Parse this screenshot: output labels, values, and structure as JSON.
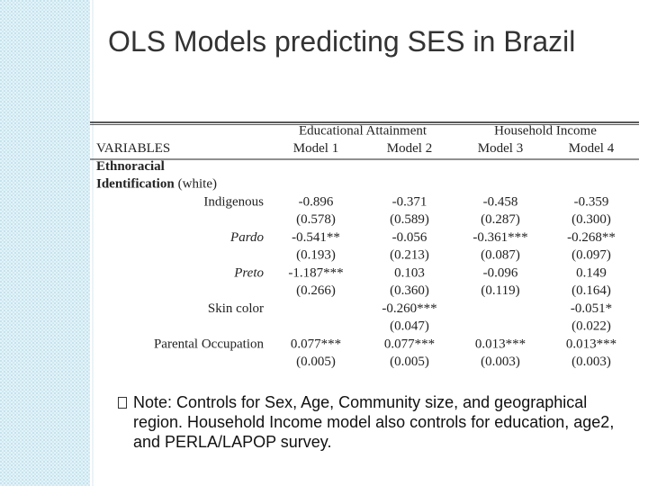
{
  "title": "OLS Models predicting SES in Brazil",
  "table": {
    "group_headers": [
      "Educational Attainment",
      "Household Income"
    ],
    "header": [
      "VARIABLES",
      "Model 1",
      "Model 2",
      "Model 3",
      "Model 4"
    ],
    "section_label": "Ethnoracial",
    "section_sublabel": "Identification",
    "reference": "(white)",
    "rows": [
      {
        "label": "Indigenous",
        "coef": [
          "-0.896",
          "-0.371",
          "-0.458",
          "-0.359"
        ],
        "se": [
          "(0.578)",
          "(0.589)",
          "(0.287)",
          "(0.300)"
        ]
      },
      {
        "label": "Pardo",
        "coef": [
          "-0.541**",
          "-0.056",
          "-0.361***",
          "-0.268**"
        ],
        "se": [
          "(0.193)",
          "(0.213)",
          "(0.087)",
          "(0.097)"
        ]
      },
      {
        "label": "Preto",
        "coef": [
          "-1.187***",
          "0.103",
          "-0.096",
          "0.149"
        ],
        "se": [
          "(0.266)",
          "(0.360)",
          "(0.119)",
          "(0.164)"
        ]
      },
      {
        "label": "Skin color",
        "coef": [
          null,
          "-0.260***",
          null,
          "-0.051*"
        ],
        "se": [
          null,
          "(0.047)",
          null,
          "(0.022)"
        ]
      },
      {
        "label": "Parental Occupation",
        "coef": [
          "0.077***",
          "0.077***",
          "0.013***",
          "0.013***"
        ],
        "se": [
          "(0.005)",
          "(0.005)",
          "(0.003)",
          "(0.003)"
        ]
      }
    ]
  },
  "note": "Note: Controls for Sex,  Age, Community size, and geographical region. Household Income model also controls for education, age2, and PERLA/LAPOP survey."
}
